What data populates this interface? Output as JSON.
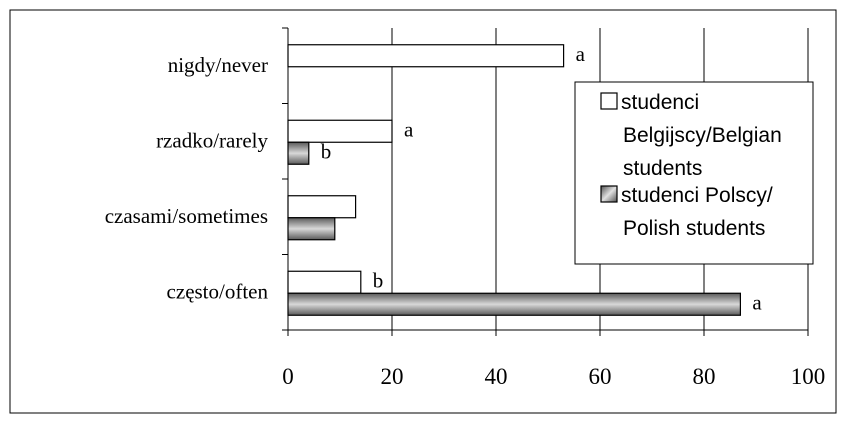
{
  "chart_data": {
    "type": "bar",
    "orientation": "horizontal",
    "categories": [
      "nigdy/never",
      "rzadko/rarely",
      "czasami/sometimes",
      "często/often"
    ],
    "series": [
      {
        "name": "studenci Belgijscy/Belgian students",
        "legend_lines": [
          "studenci",
          "Belgijscy/Belgian",
          "students"
        ],
        "color": "#ffffff",
        "values": [
          53,
          20,
          13,
          14
        ],
        "labels": [
          "a",
          "a",
          "",
          "b"
        ]
      },
      {
        "name": "studenci Polscy/ Polish students",
        "legend_lines": [
          "studenci Polscy/",
          "Polish students"
        ],
        "color": "#808080",
        "values": [
          0,
          4,
          9,
          87
        ],
        "labels": [
          "",
          "b",
          "",
          "a"
        ]
      }
    ],
    "xlim": [
      0,
      100
    ],
    "x_ticks": [
      "0",
      "20",
      "40",
      "60",
      "80",
      "100"
    ],
    "grid": "vertical",
    "legend_position": "right"
  }
}
